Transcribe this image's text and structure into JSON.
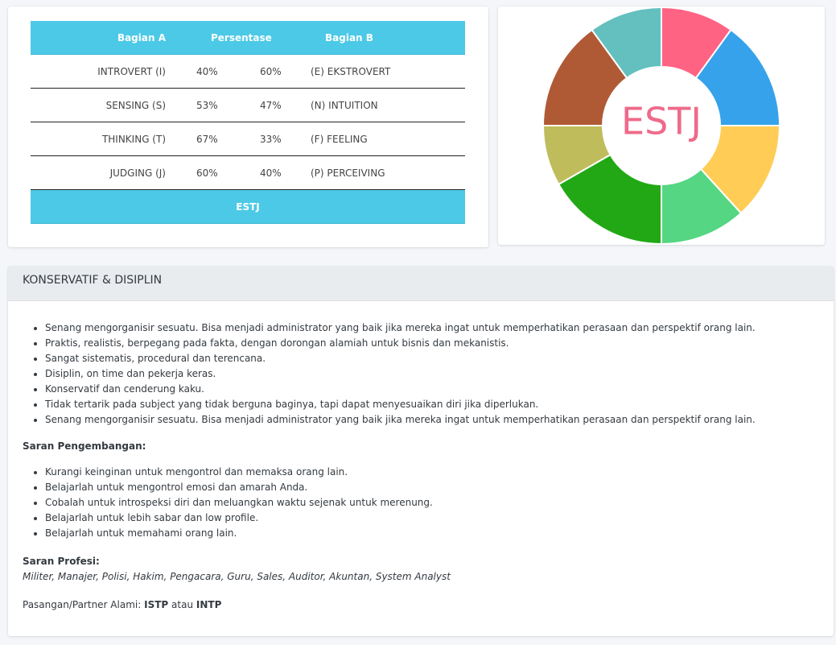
{
  "table": {
    "headers": [
      "Bagian A",
      "Persentase",
      "Bagian B"
    ],
    "rows": [
      [
        "INTROVERT (I)",
        "40%",
        "60%",
        "(E) EKSTROVERT"
      ],
      [
        "SENSING (S)",
        "53%",
        "47%",
        "(N) INTUITION"
      ],
      [
        "THINKING (T)",
        "67%",
        "33%",
        "(F) FEELING"
      ],
      [
        "JUDGING (J)",
        "60%",
        "40%",
        "(P) PERCEIVING"
      ]
    ],
    "footer": "ESTJ"
  },
  "chart_data": {
    "type": "doughnut",
    "center_label": "ESTJ",
    "values": [
      40,
      60,
      53,
      47,
      67,
      33,
      60,
      40
    ],
    "colors": [
      "#ff6384",
      "#36a2eb",
      "#ffcd56",
      "#55d683",
      "#22a815",
      "#bfbc5c",
      "#b05a35",
      "#63c0bf"
    ]
  },
  "section": {
    "title": "KONSERVATIF & DISIPLIN",
    "traits": [
      "Senang mengorganisir sesuatu. Bisa menjadi administrator yang baik jika mereka ingat untuk memperhatikan perasaan dan perspektif orang lain.",
      "Praktis, realistis, berpegang pada fakta, dengan dorongan alamiah untuk bisnis dan mekanistis.",
      "Sangat sistematis, procedural dan terencana.",
      "Disiplin, on time dan pekerja keras.",
      "Konservatif dan cenderung kaku.",
      "Tidak tertarik pada subject yang tidak berguna baginya, tapi dapat menyesuaikan diri jika diperlukan.",
      "Senang mengorganisir sesuatu. Bisa menjadi administrator yang baik jika mereka ingat untuk memperhatikan perasaan dan perspektif orang lain."
    ],
    "development_title": "Saran Pengembangan:",
    "development": [
      "Kurangi keinginan untuk mengontrol dan memaksa orang lain.",
      "Belajarlah untuk mengontrol emosi dan amarah Anda.",
      "Cobalah untuk introspeksi diri dan meluangkan waktu sejenak untuk merenung.",
      "Belajarlah untuk lebih sabar dan low profile.",
      "Belajarlah untuk memahami orang lain."
    ],
    "profession_title": "Saran Profesi:",
    "professions": "Militer, Manajer, Polisi, Hakim, Pengacara, Guru, Sales, Auditor, Akuntan, System Analyst",
    "partner": {
      "label": "Pasangan/Partner Alami:",
      "first": "ISTP",
      "connector": "atau",
      "second": "INTP"
    }
  }
}
